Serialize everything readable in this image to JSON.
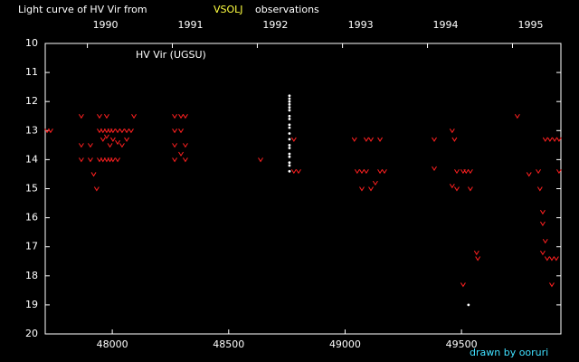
{
  "chart_data": {
    "type": "scatter",
    "title": "Light curve of HV Vir from",
    "title_source": "VSOLJ",
    "title_suffix": "observations",
    "annotation": "HV Vir (UGSU)",
    "credit": "drawn by ooruri",
    "xlim": [
      47712,
      49927
    ],
    "ylim": [
      20,
      10
    ],
    "xticks": [
      48000,
      48500,
      49000,
      49500
    ],
    "yticks": [
      10,
      11,
      12,
      13,
      14,
      15,
      16,
      17,
      18,
      19,
      20
    ],
    "x2ticks": [
      {
        "value": 47893,
        "label": "1990"
      },
      {
        "value": 48258,
        "label": "1991"
      },
      {
        "value": 48623,
        "label": "1992"
      },
      {
        "value": 48989,
        "label": "1993"
      },
      {
        "value": 49354,
        "label": "1994"
      },
      {
        "value": 49719,
        "label": "1995"
      }
    ],
    "series": [
      {
        "color": "#ff2020",
        "marker": "v",
        "x": [
          47720,
          47735,
          47867,
          47867,
          47867,
          47906,
          47906,
          47920,
          47933,
          47945,
          47945,
          47945,
          47960,
          47960,
          47960,
          47976,
          47976,
          47976,
          47976,
          47990,
          47990,
          47990,
          48003,
          48003,
          48003,
          48023,
          48023,
          48023,
          48042,
          48042,
          48062,
          48062,
          48081,
          48093,
          48268,
          48268,
          48268,
          48268,
          48295,
          48295,
          48295,
          48314,
          48314,
          48314,
          48637,
          48780,
          48780,
          48800,
          49040,
          49052,
          49072,
          49072,
          49091,
          49091,
          49111,
          49111,
          49130,
          49150,
          49150,
          49169,
          49383,
          49383,
          49460,
          49460,
          49470,
          49480,
          49480,
          49507,
          49507,
          49520,
          49538,
          49538,
          49565,
          49570,
          49740,
          49790,
          49830,
          49837,
          49849,
          49849,
          49849,
          49860,
          49860,
          49868,
          49880,
          49888,
          49888,
          49900,
          49907,
          49919,
          49919
        ],
        "values": [
          13.0,
          13.0,
          12.5,
          13.5,
          14.0,
          13.5,
          14.0,
          14.5,
          15.0,
          12.5,
          13.0,
          14.0,
          13.0,
          13.3,
          14.0,
          12.5,
          13.0,
          13.2,
          14.0,
          13.0,
          13.5,
          14.0,
          13.0,
          13.3,
          14.0,
          13.0,
          13.4,
          14.0,
          13.0,
          13.5,
          13.0,
          13.3,
          13.0,
          12.5,
          12.5,
          13.0,
          13.5,
          14.0,
          12.5,
          13.0,
          13.8,
          12.5,
          13.5,
          14.0,
          14.0,
          13.3,
          14.4,
          14.4,
          13.3,
          14.4,
          14.4,
          15.0,
          13.3,
          14.4,
          13.3,
          15.0,
          14.8,
          13.3,
          14.4,
          14.4,
          13.3,
          14.3,
          13.0,
          14.9,
          13.3,
          14.4,
          15.0,
          18.3,
          14.4,
          14.4,
          14.4,
          15.0,
          17.2,
          17.4,
          12.5,
          14.5,
          14.4,
          15.0,
          15.8,
          16.2,
          17.2,
          16.8,
          13.3,
          17.4,
          13.3,
          18.3,
          17.4,
          13.3,
          17.4,
          13.3,
          14.4
        ]
      },
      {
        "color": "#ffffff",
        "marker": "dot",
        "x": [
          48761,
          48761,
          48761,
          48761,
          48761,
          48761,
          48761,
          48761,
          48761,
          48761,
          48761,
          48761,
          48761,
          48761,
          48761,
          48761,
          48761,
          48761,
          48761,
          49530
        ],
        "values": [
          11.8,
          11.9,
          12.0,
          12.1,
          12.2,
          12.3,
          12.5,
          12.6,
          12.8,
          12.9,
          13.1,
          13.3,
          13.5,
          13.6,
          13.8,
          13.9,
          14.1,
          14.2,
          14.4,
          19.0
        ]
      }
    ]
  }
}
